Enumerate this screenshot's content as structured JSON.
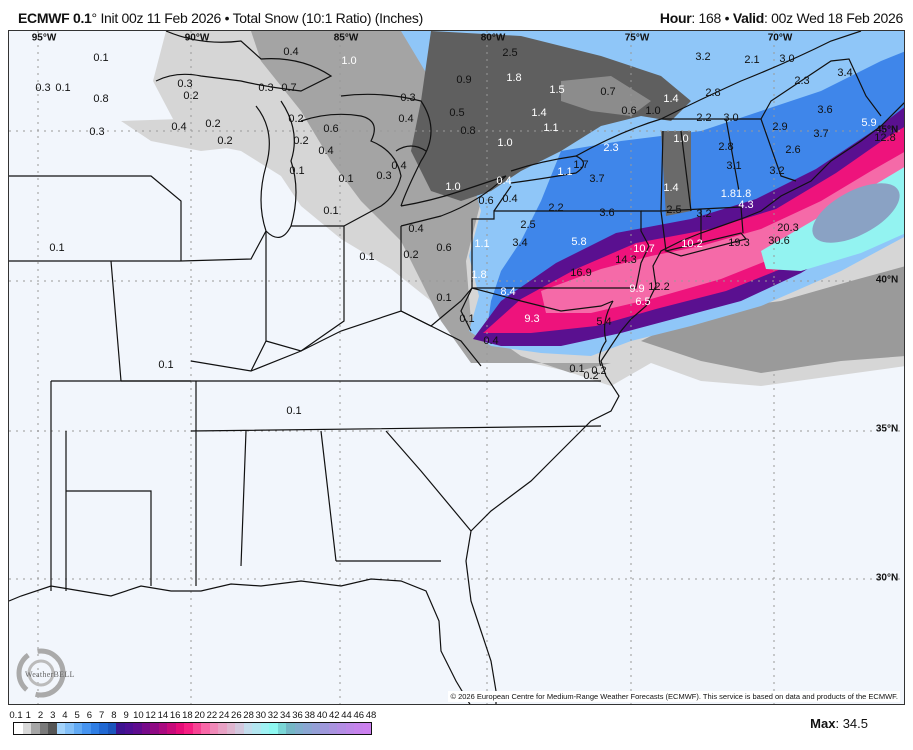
{
  "header": {
    "model": "ECMWF 0.1",
    "degree": "°",
    "init": "Init 00z 11 Feb 2026",
    "separator": "•",
    "product": "Total Snow (10:1 Ratio) (Inches)",
    "hour_label": "Hour",
    "hour_value": ": 168",
    "valid_label": "Valid",
    "valid_value": ": 00z Wed 18 Feb 2026"
  },
  "map": {
    "longitude_labels": [
      "95°W",
      "90°W",
      "85°W",
      "80°W",
      "75°W",
      "70°W"
    ],
    "latitude_labels": [
      "45°N",
      "40°N",
      "35°N",
      "30°N"
    ],
    "value_labels": [
      "0.1",
      "0.3",
      "0.1",
      "0.8",
      "0.3",
      "0.4",
      "0.2",
      "0.2",
      "0.4",
      "0.3",
      "0.7",
      "0.3",
      "0.2",
      "1.0",
      "0.3",
      "0.4",
      "0.2",
      "0.6",
      "0.2",
      "0.4",
      "0.1",
      "0.3",
      "0.4",
      "0.1",
      "0.1",
      "0.4",
      "0.2",
      "0.1",
      "0.1",
      "0.1",
      "0.1",
      "0.1",
      "0.1",
      "0.4",
      "2.5",
      "1.8",
      "0.9",
      "1.5",
      "0.7",
      "1.4",
      "1.1",
      "0.5",
      "0.8",
      "1.0",
      "0.6",
      "1.0",
      "1.4",
      "3.2",
      "2.1",
      "3.0",
      "3.4",
      "2.3",
      "2.8",
      "2.2",
      "3.0",
      "3.6",
      "2.9",
      "3.7",
      "5.9",
      "12.8",
      "1.0",
      "2.8",
      "3.1",
      "2.6",
      "3.2",
      "3.7",
      "1.1",
      "1.7",
      "2.3",
      "1.4",
      "1.81.8",
      "4.3",
      "2.5",
      "3.2",
      "2.2",
      "3.6",
      "2.5",
      "1.0",
      "0.4",
      "0.6",
      "0.4",
      "0.6",
      "1.1",
      "3.4",
      "5.8",
      "10.7",
      "10.2",
      "19.3",
      "20.3",
      "30.6",
      "14.3",
      "16.9",
      "1.8",
      "8.4",
      "9.9",
      "12.2",
      "6.5",
      "9.3",
      "5.4",
      "0.1",
      "0.2",
      "0.2"
    ],
    "copyright": "© 2026 European Centre for Medium-Range Weather Forecasts (ECMWF). This service is based on data and products of the ECMWF.",
    "logo_text": "WeatherBELL"
  },
  "colorbar": {
    "labels": [
      "0.1",
      "1",
      "2",
      "3",
      "4",
      "5",
      "6",
      "7",
      "8",
      "9",
      "10",
      "12",
      "14",
      "16",
      "18",
      "20",
      "22",
      "24",
      "26",
      "28",
      "30",
      "32",
      "34",
      "36",
      "38",
      "40",
      "42",
      "44",
      "46",
      "48"
    ],
    "colors": [
      "#ffffff",
      "#d9d9d9",
      "#a6a6a6",
      "#7a7a7a",
      "#555555",
      "#a3d3fb",
      "#84c0f8",
      "#62aaf4",
      "#4694f0",
      "#2f7ee4",
      "#2168d2",
      "#1b55bc",
      "#3d1390",
      "#4c0f93",
      "#5e0c8f",
      "#770a8a",
      "#8f0a84",
      "#aa0a80",
      "#c70a7a",
      "#e50c78",
      "#f61e82",
      "#f84394",
      "#f968a8",
      "#f089b8",
      "#e8a1c4",
      "#dfb5cf",
      "#d3c7dd",
      "#c4dcec",
      "#b3e6f0",
      "#9ff2f4",
      "#8ef8f1",
      "#7ad6d6",
      "#74b7c6",
      "#80aecd",
      "#8aa6d2",
      "#949fd6",
      "#9e98db",
      "#a993df",
      "#b38de4",
      "#bd88e8",
      "#c683ec",
      "#cc80ef"
    ],
    "max_label": "Max",
    "max_value": ": 34.5"
  },
  "shading_colors": {
    "light_gray": "#d3d3d3",
    "mid_gray": "#9a9a9a",
    "dark_gray": "#6c6c6c",
    "blue_light": "#8fc6f8",
    "blue": "#3d86ea",
    "purple": "#5a1090",
    "magenta": "#f0137c",
    "pink": "#f56aa8",
    "cyan": "#93f3f1",
    "land": "#f2f6fc"
  }
}
